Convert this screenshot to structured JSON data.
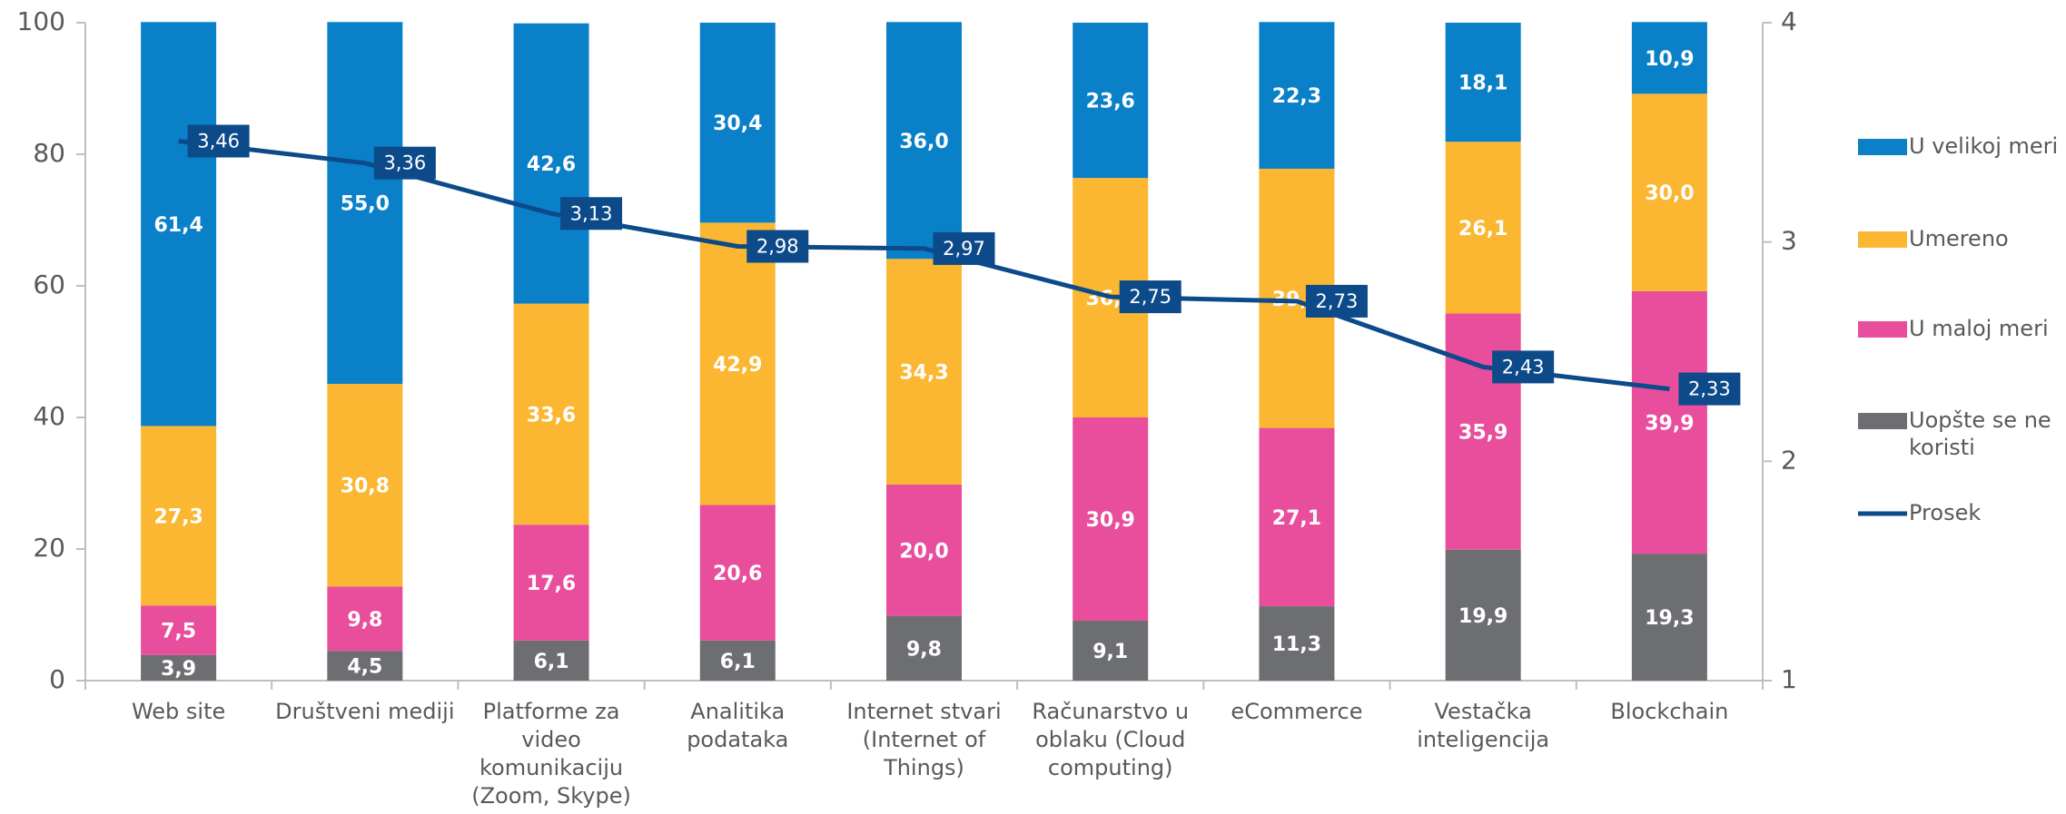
{
  "chart_data": {
    "type": "bar",
    "stacked": true,
    "categories": [
      "Web site",
      "Društveni mediji",
      "Platforme za\nvideo\nkomunikaciju\n(Zoom, Skype)",
      "Analitika\npodataka",
      "Internet stvari\n(Internet of\nThings)",
      "Računarstvo u\noblaku (Cloud\ncomputing)",
      "eCommerce",
      "Vestačka\ninteligencija",
      "Blockchain"
    ],
    "series": [
      {
        "name": "Uopšte se ne\nkoristi",
        "color": "#6d6e71",
        "values": [
          3.9,
          4.5,
          6.1,
          6.1,
          9.8,
          9.1,
          11.3,
          19.9,
          19.3
        ],
        "value_labels": [
          "3,9",
          "4,5",
          "6,1",
          "6,1",
          "9,8",
          "9,1",
          "11,3",
          "19,9",
          "19,3"
        ]
      },
      {
        "name": "U maloj meri",
        "color": "#e84e9b",
        "values": [
          7.5,
          9.8,
          17.6,
          20.6,
          20.0,
          30.9,
          27.1,
          35.9,
          39.9
        ],
        "value_labels": [
          "7,5",
          "9,8",
          "17,6",
          "20,6",
          "20,0",
          "30,9",
          "27,1",
          "35,9",
          "39,9"
        ]
      },
      {
        "name": "Umereno",
        "color": "#fbb731",
        "values": [
          27.3,
          30.8,
          33.6,
          42.9,
          34.3,
          36.4,
          39.4,
          26.1,
          30.0
        ],
        "value_labels": [
          "27,3",
          "30,8",
          "33,6",
          "42,9",
          "34,3",
          "36,4",
          "39,4",
          "26,1",
          "30,0"
        ]
      },
      {
        "name": "U velikoj meri",
        "color": "#0a80c9",
        "values": [
          61.4,
          55.0,
          42.6,
          30.4,
          36.0,
          23.6,
          22.3,
          18.1,
          10.9
        ],
        "value_labels": [
          "61,4",
          "55,0",
          "42,6",
          "30,4",
          "36,0",
          "23,6",
          "22,3",
          "18,1",
          "10,9"
        ]
      },
      {
        "name": "Prosek",
        "type": "line",
        "axis": "y2",
        "color": "#0c4a8a",
        "values": [
          3.46,
          3.36,
          3.13,
          2.98,
          2.97,
          2.75,
          2.73,
          2.43,
          2.33
        ],
        "value_labels": [
          "3,46",
          "3,36",
          "3,13",
          "2,98",
          "2,97",
          "2,75",
          "2,73",
          "2,43",
          "2,33"
        ]
      }
    ],
    "ylim": [
      0,
      100
    ],
    "yticks": [
      0,
      20,
      40,
      60,
      80,
      100
    ],
    "y2lim": [
      1,
      4
    ],
    "y2ticks": [
      1,
      2,
      3,
      4
    ],
    "grid": false,
    "legend": "right"
  }
}
